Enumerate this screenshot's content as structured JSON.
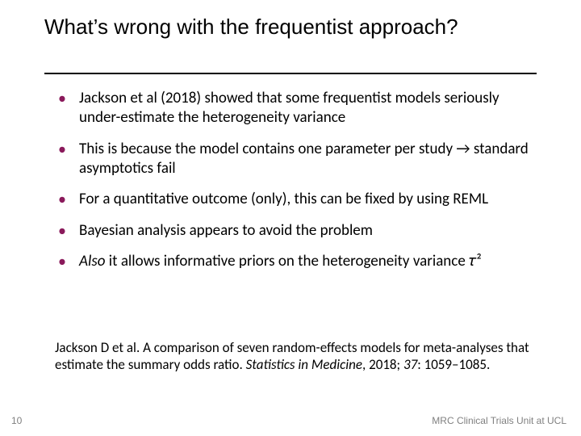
{
  "colors": {
    "bullet": "#8a1a5b",
    "rule": "#000000",
    "text": "#000000",
    "footer": "#808080",
    "background": "#ffffff"
  },
  "typography": {
    "title_family": "Verdana",
    "title_size_pt": 26,
    "body_family": "Calibri",
    "body_size_pt": 19,
    "citation_size_pt": 17,
    "footer_size_pt": 12
  },
  "title": "What’s wrong with the frequentist approach?",
  "bullets": [
    {
      "text": "Jackson et al (2018) showed that some frequentist models seriously under-estimate the heterogeneity variance"
    },
    {
      "text": "This is because the model contains one parameter per study → standard asymptotics fail"
    },
    {
      "text": "For a quantitative outcome (only), this can be fixed by using REML"
    },
    {
      "text": "Bayesian analysis appears to avoid the problem"
    },
    {
      "text_prefix_italic": "Also",
      "text_rest": " it allows informative priors on the heterogeneity variance 𝜏²"
    }
  ],
  "citation": {
    "authors_title": "Jackson D et al. A comparison of seven random-effects models for meta-analyses that estimate the summary odds ratio. ",
    "journal": "Statistics in Medicine",
    "year_sep": ", 2018; ",
    "volume": "37",
    "pages": ": 1059–1085."
  },
  "page_number": "10",
  "footer_right": "MRC Clinical Trials Unit at UCL"
}
